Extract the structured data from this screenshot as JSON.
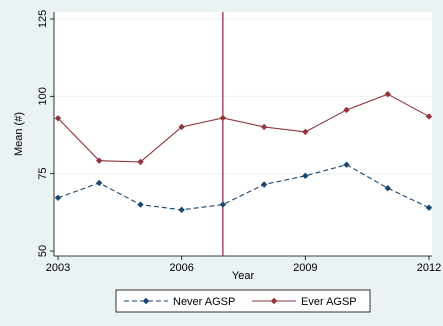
{
  "chart_data": {
    "type": "line",
    "title": "",
    "xlabel": "Year",
    "ylabel": "Mean (#)",
    "x": [
      2003,
      2004,
      2005,
      2006,
      2007,
      2008,
      2009,
      2010,
      2011,
      2012
    ],
    "xticks": [
      2003,
      2006,
      2009,
      2012
    ],
    "xlim": [
      2003,
      2012
    ],
    "yticks": [
      50,
      75,
      100,
      125
    ],
    "ylim": [
      50,
      125
    ],
    "grid": "horizontal",
    "legend_position": "bottom",
    "reference_line": {
      "x": 2007,
      "color": "#9b1b4a"
    },
    "series": [
      {
        "name": "Never AGSP",
        "color": "#1a476f",
        "line_style": "dashed",
        "marker": "diamond",
        "values": [
          67.2,
          72.0,
          65.0,
          63.3,
          65.0,
          71.5,
          74.3,
          77.9,
          70.3,
          64.0
        ]
      },
      {
        "name": "Ever AGSP",
        "color": "#90353b",
        "line_style": "solid",
        "marker": "diamond",
        "values": [
          92.9,
          79.2,
          78.8,
          90.1,
          93.0,
          90.1,
          88.5,
          95.6,
          100.7,
          93.5
        ]
      }
    ]
  }
}
